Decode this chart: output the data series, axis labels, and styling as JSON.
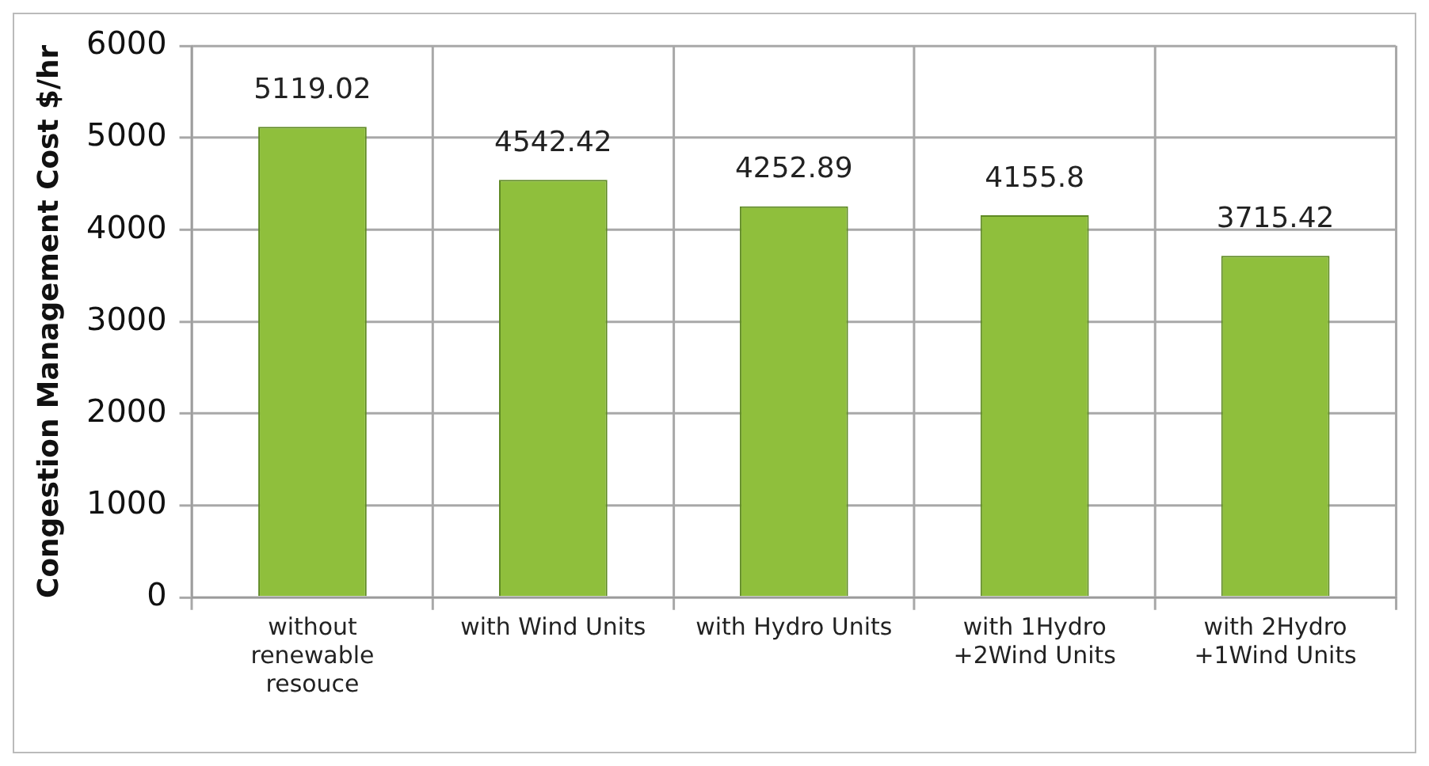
{
  "chart_data": {
    "type": "bar",
    "ylabel": "Congestion Management Cost $/hr",
    "categories": [
      "without renewable resouce",
      "with Wind Units",
      "with Hydro Units",
      "with 1Hydro +2Wind Units",
      "with 2Hydro +1Wind Units"
    ],
    "values": [
      5119.02,
      4542.42,
      4252.89,
      4155.8,
      3715.42
    ],
    "color": "#8fbf3c",
    "ylim": [
      0,
      6000
    ],
    "yticks": [
      0,
      1000,
      2000,
      3000,
      4000,
      5000,
      6000
    ],
    "grid": true,
    "data_labels": true,
    "legend": false
  }
}
